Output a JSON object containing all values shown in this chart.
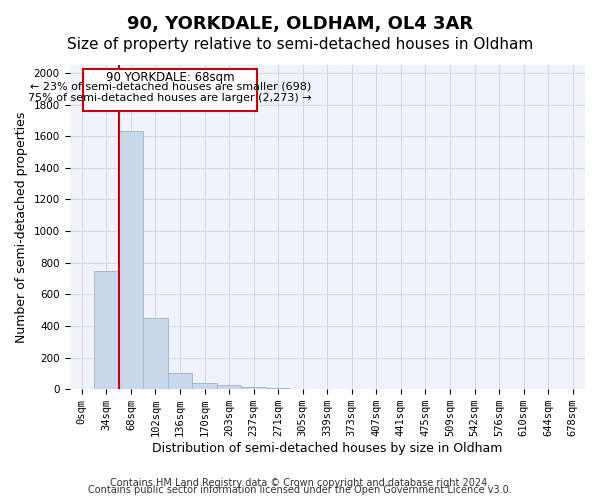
{
  "title": "90, YORKDALE, OLDHAM, OL4 3AR",
  "subtitle": "Size of property relative to semi-detached houses in Oldham",
  "xlabel": "Distribution of semi-detached houses by size in Oldham",
  "ylabel": "Number of semi-detached properties",
  "footnote1": "Contains HM Land Registry data © Crown copyright and database right 2024.",
  "footnote2": "Contains public sector information licensed under the Open Government Licence v3.0.",
  "annotation_title": "90 YORKDALE: 68sqm",
  "annotation_line1": "← 23% of semi-detached houses are smaller (698)",
  "annotation_line2": "75% of semi-detached houses are larger (2,273) →",
  "property_bin_index": 1,
  "bar_color": "#c9d9ea",
  "bar_edge_color": "#a0b8d0",
  "redline_color": "#cc0000",
  "annotation_box_edge": "#cc0000",
  "annotation_box_face": "#ffffff",
  "grid_color": "#d0d8e8",
  "background_color": "#ffffff",
  "plot_bg_color": "#f0f4fa",
  "bins": [
    "0sqm",
    "34sqm",
    "68sqm",
    "102sqm",
    "136sqm",
    "170sqm",
    "203sqm",
    "237sqm",
    "271sqm",
    "305sqm",
    "339sqm",
    "373sqm",
    "407sqm",
    "441sqm",
    "475sqm",
    "509sqm",
    "542sqm",
    "576sqm",
    "610sqm",
    "644sqm",
    "678sqm"
  ],
  "values": [
    0,
    750,
    1630,
    450,
    105,
    40,
    25,
    15,
    10,
    2,
    0,
    0,
    0,
    0,
    0,
    0,
    0,
    0,
    0,
    0,
    0
  ],
  "ylim": [
    0,
    2050
  ],
  "yticks": [
    0,
    200,
    400,
    600,
    800,
    1000,
    1200,
    1400,
    1600,
    1800,
    2000
  ],
  "title_fontsize": 13,
  "subtitle_fontsize": 11,
  "label_fontsize": 9,
  "tick_fontsize": 7.5,
  "footnote_fontsize": 7
}
